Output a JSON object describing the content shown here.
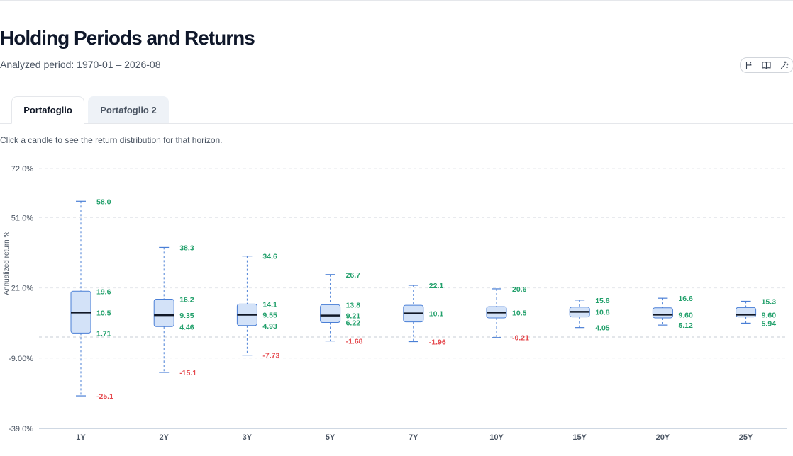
{
  "page": {
    "title": "Holding Periods and Returns",
    "subtitle": "Analyzed period: 1970-01 – 2026-08",
    "hint": "Click a candle to see the return distribution for that horizon."
  },
  "tabs": [
    {
      "label": "Portafoglio",
      "active": true
    },
    {
      "label": "Portafoglio 2",
      "active": false
    }
  ],
  "actions": [
    {
      "icon": "flag-icon"
    },
    {
      "icon": "book-icon"
    },
    {
      "icon": "sparkles-icon"
    }
  ],
  "colors": {
    "box_fill": "#d3e2f8",
    "box_stroke": "#4a7fd6",
    "median": "#111827",
    "positive_label": "#22a06b",
    "negative_label": "#e5484d",
    "grid": "#e5e7eb"
  },
  "chart_data": {
    "type": "boxplot",
    "ylabel": "Annualized return %",
    "y_ticks": [
      "72.0%",
      "51.0%",
      "21.0%",
      "-9.00%",
      "-39.0%"
    ],
    "y_tick_values": [
      72,
      51,
      21,
      -9,
      -39
    ],
    "ylim": [
      -39,
      72
    ],
    "zero_line": true,
    "grid": true,
    "categories": [
      "1Y",
      "2Y",
      "3Y",
      "5Y",
      "7Y",
      "10Y",
      "15Y",
      "20Y",
      "25Y"
    ],
    "boxes": [
      {
        "min": -25.1,
        "q1": 1.71,
        "median": 10.5,
        "q3": 19.6,
        "max": 58.0,
        "labels": {
          "max": "58.0",
          "q3": "19.6",
          "median": "10.5",
          "q1": "1.71",
          "min": "-25.1"
        }
      },
      {
        "min": -15.1,
        "q1": 4.46,
        "median": 9.35,
        "q3": 16.2,
        "max": 38.3,
        "labels": {
          "max": "38.3",
          "q3": "16.2",
          "median": "9.35",
          "q1": "4.46",
          "min": "-15.1"
        }
      },
      {
        "min": -7.73,
        "q1": 4.93,
        "median": 9.55,
        "q3": 14.1,
        "max": 34.6,
        "labels": {
          "max": "34.6",
          "q3": "14.1",
          "median": "9.55",
          "q1": "4.93",
          "min": "-7.73"
        }
      },
      {
        "min": -1.68,
        "q1": 6.22,
        "median": 9.21,
        "q3": 13.8,
        "max": 26.7,
        "labels": {
          "max": "26.7",
          "q3": "13.8",
          "median": "9.21",
          "q1": "6.22",
          "min": "-1.68"
        }
      },
      {
        "min": -1.96,
        "q1": 6.5,
        "median": 10.1,
        "q3": 13.6,
        "max": 22.1,
        "labels": {
          "max": "22.1",
          "median": "10.1",
          "min": "-1.96"
        }
      },
      {
        "min": -0.21,
        "q1": 8.2,
        "median": 10.5,
        "q3": 13.0,
        "max": 20.6,
        "labels": {
          "max": "20.6",
          "median": "10.5",
          "min": "-0.21"
        }
      },
      {
        "min": 4.05,
        "q1": 8.6,
        "median": 10.8,
        "q3": 12.8,
        "max": 15.8,
        "labels": {
          "max": "15.8",
          "median": "10.8",
          "min": "4.05"
        }
      },
      {
        "min": 5.12,
        "q1": 8.2,
        "median": 9.6,
        "q3": 12.5,
        "max": 16.6,
        "labels": {
          "max": "16.6",
          "median": "9.60",
          "min": "5.12"
        }
      },
      {
        "min": 5.94,
        "q1": 8.6,
        "median": 9.6,
        "q3": 12.6,
        "max": 15.3,
        "labels": {
          "max": "15.3",
          "median": "9.60",
          "min": "5.94"
        }
      }
    ]
  }
}
